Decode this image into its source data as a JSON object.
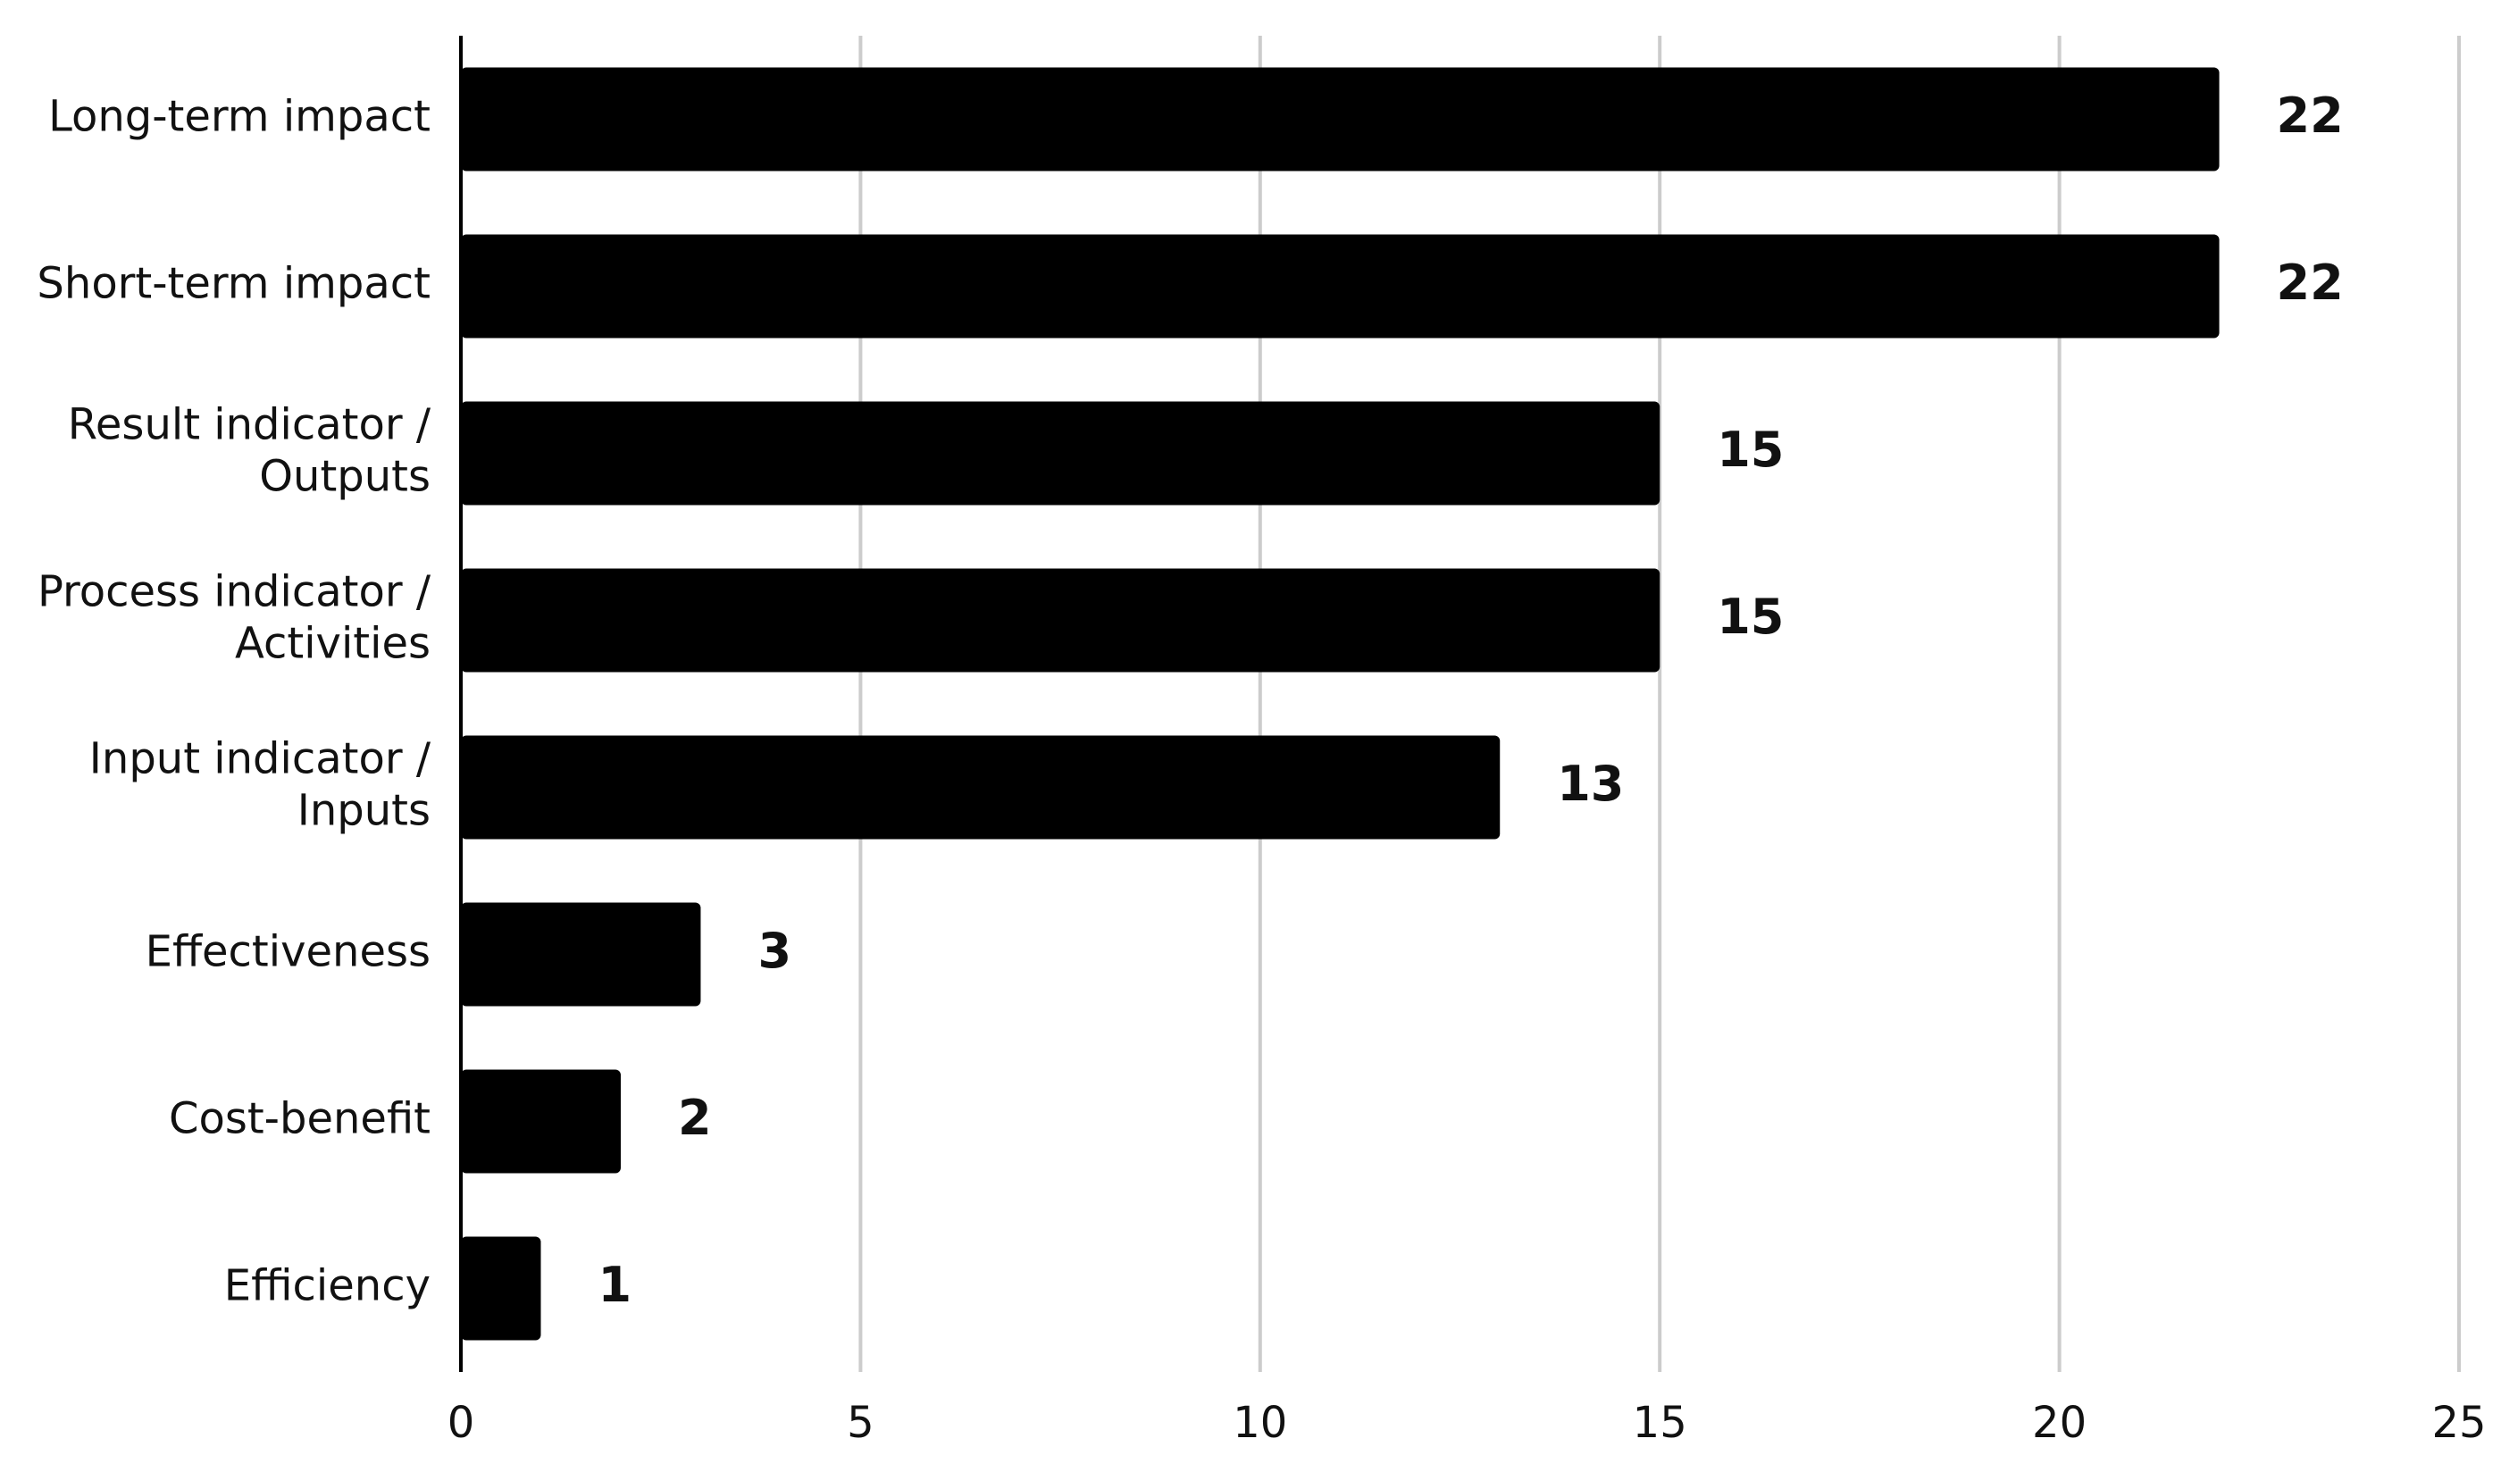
{
  "chart_data": {
    "type": "bar",
    "orientation": "horizontal",
    "categories": [
      "Long-term impact",
      "Short-term impact",
      "Result indicator / Outputs",
      "Process indicator / Activities",
      "Input indicator / Inputs",
      "Effectiveness",
      "Cost-benefit",
      "Efficiency"
    ],
    "values": [
      22,
      22,
      15,
      15,
      13,
      3,
      2,
      1
    ],
    "color": "#000000",
    "xlim": [
      0,
      25
    ],
    "xticks": [
      0,
      5,
      10,
      15,
      20,
      25
    ],
    "grid": true
  }
}
